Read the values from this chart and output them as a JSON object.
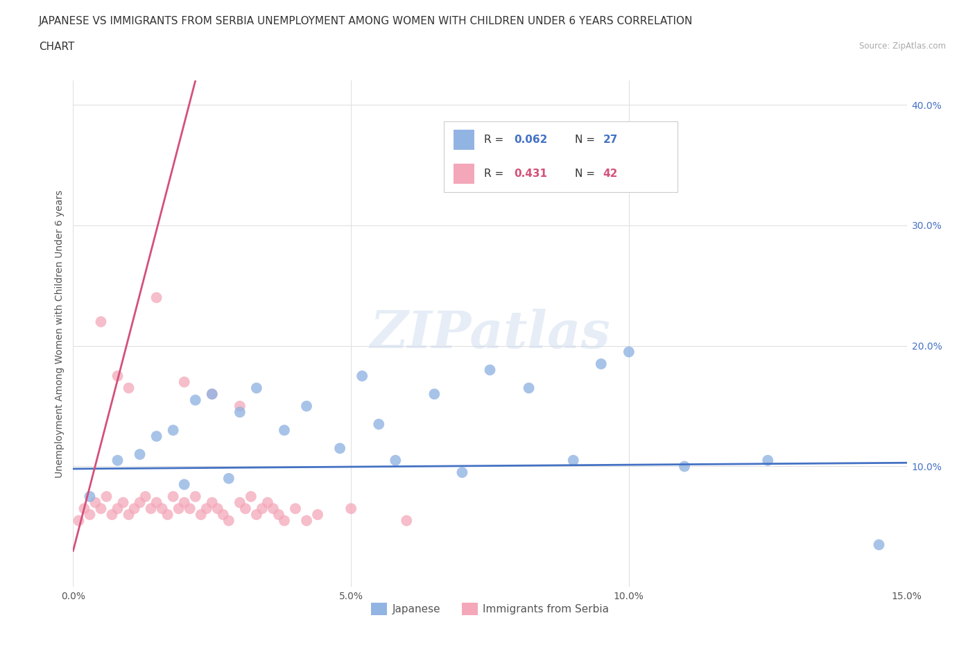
{
  "title_line1": "JAPANESE VS IMMIGRANTS FROM SERBIA UNEMPLOYMENT AMONG WOMEN WITH CHILDREN UNDER 6 YEARS CORRELATION",
  "title_line2": "CHART",
  "source": "Source: ZipAtlas.com",
  "ylabel": "Unemployment Among Women with Children Under 6 years",
  "xlim": [
    0.0,
    0.15
  ],
  "ylim": [
    0.0,
    0.42
  ],
  "xticks": [
    0.0,
    0.05,
    0.1,
    0.15
  ],
  "xticklabels": [
    "0.0%",
    "5.0%",
    "10.0%",
    "15.0%"
  ],
  "yticks": [
    0.0,
    0.1,
    0.2,
    0.3,
    0.4
  ],
  "yticklabels": [
    "",
    "10.0%",
    "20.0%",
    "30.0%",
    "40.0%"
  ],
  "legend_japanese": "Japanese",
  "legend_serbia": "Immigrants from Serbia",
  "R_japanese": "0.062",
  "N_japanese": "27",
  "R_serbia": "0.431",
  "N_serbia": "42",
  "japanese_color": "#92b4e3",
  "serbia_color": "#f4a7b9",
  "trend_japanese_color": "#4472c4",
  "trend_serbia_color": "#d4507a",
  "japanese_scatter_x": [
    0.003,
    0.008,
    0.012,
    0.015,
    0.018,
    0.02,
    0.022,
    0.025,
    0.028,
    0.03,
    0.033,
    0.038,
    0.042,
    0.048,
    0.052,
    0.055,
    0.058,
    0.065,
    0.07,
    0.075,
    0.082,
    0.09,
    0.095,
    0.1,
    0.11,
    0.125,
    0.145
  ],
  "japanese_scatter_y": [
    0.075,
    0.105,
    0.11,
    0.125,
    0.13,
    0.085,
    0.155,
    0.16,
    0.09,
    0.145,
    0.165,
    0.13,
    0.15,
    0.115,
    0.175,
    0.135,
    0.105,
    0.16,
    0.095,
    0.18,
    0.165,
    0.105,
    0.185,
    0.195,
    0.1,
    0.105,
    0.035
  ],
  "serbia_scatter_x": [
    0.001,
    0.002,
    0.003,
    0.004,
    0.005,
    0.006,
    0.007,
    0.008,
    0.009,
    0.01,
    0.011,
    0.012,
    0.013,
    0.014,
    0.015,
    0.016,
    0.017,
    0.018,
    0.019,
    0.02,
    0.021,
    0.022,
    0.023,
    0.024,
    0.025,
    0.026,
    0.027,
    0.028,
    0.03,
    0.031,
    0.032,
    0.033,
    0.034,
    0.035,
    0.036,
    0.037,
    0.038,
    0.04,
    0.042,
    0.044,
    0.05,
    0.06
  ],
  "serbia_scatter_y": [
    0.055,
    0.065,
    0.06,
    0.07,
    0.065,
    0.075,
    0.06,
    0.065,
    0.07,
    0.06,
    0.065,
    0.07,
    0.075,
    0.065,
    0.07,
    0.065,
    0.06,
    0.075,
    0.065,
    0.07,
    0.065,
    0.075,
    0.06,
    0.065,
    0.07,
    0.065,
    0.06,
    0.055,
    0.07,
    0.065,
    0.075,
    0.06,
    0.065,
    0.07,
    0.065,
    0.06,
    0.055,
    0.065,
    0.055,
    0.06,
    0.065,
    0.055
  ],
  "serbia_outliers_x": [
    0.005,
    0.008,
    0.01,
    0.015,
    0.02,
    0.025,
    0.03
  ],
  "serbia_outliers_y": [
    0.22,
    0.175,
    0.165,
    0.24,
    0.17,
    0.16,
    0.15
  ],
  "background_color": "#ffffff",
  "grid_color": "#e0e0e0",
  "watermark": "ZIPatlas",
  "title_fontsize": 11,
  "axis_label_fontsize": 10,
  "tick_fontsize": 10,
  "blue_text_color": "#4472c4",
  "pink_text_color": "#d4507a"
}
